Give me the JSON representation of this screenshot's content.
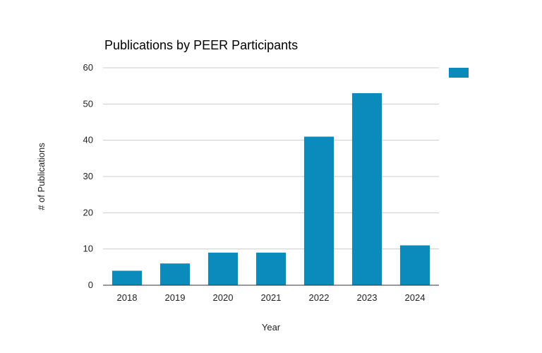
{
  "chart_data": {
    "type": "bar",
    "title": "Publications by PEER Participants",
    "xlabel": "Year",
    "ylabel": "# of Publications",
    "categories": [
      "2018",
      "2019",
      "2020",
      "2021",
      "2022",
      "2023",
      "2024"
    ],
    "series": [
      {
        "values": [
          4,
          6,
          9,
          9,
          41,
          53,
          11
        ],
        "color": "#0a8bbb"
      }
    ],
    "ylim": [
      0,
      60
    ],
    "yticks": [
      "0",
      "10",
      "20",
      "30",
      "40",
      "50",
      "60"
    ],
    "grid": true,
    "legend": {
      "position": "right",
      "entries": [
        {
          "color": "#0a8bbb"
        }
      ]
    }
  }
}
